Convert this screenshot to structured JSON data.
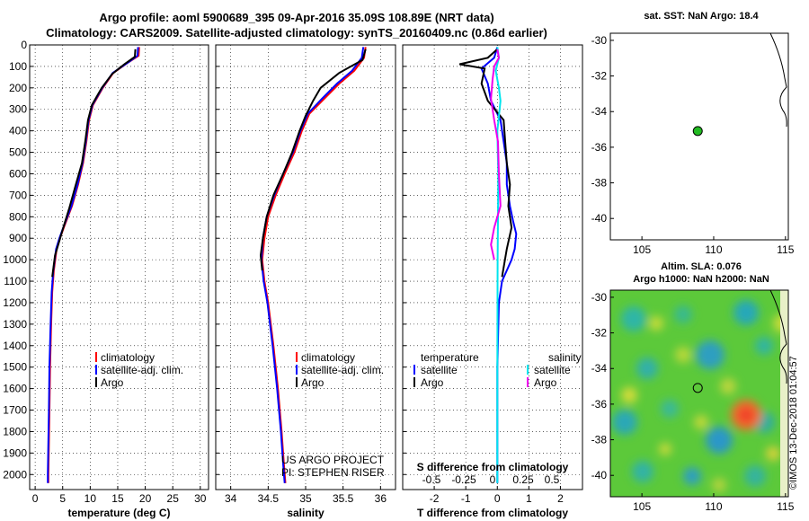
{
  "header": {
    "title_line1": "Argo profile: aoml 5900689_395 09-Apr-2016 35.09S 108.89E (NRT data)",
    "title_line2": "Climatology: CARS2009. Satellite-adjusted climatology: synTS_20160409.nc (0.86d earlier)"
  },
  "colors": {
    "climatology": "#ff0000",
    "satellite": "#0000ff",
    "argo": "#000000",
    "sal_satellite": "#00e5ee",
    "sal_argo": "#ee00ee"
  },
  "watermark": "©IMOS 13-Dec-2018 01:04:57",
  "project_credit": {
    "line1": "US ARGO PROJECT",
    "line2": "PI: STEPHEN RISER"
  },
  "chart_data": [
    {
      "type": "line",
      "id": "temperature",
      "xlabel": "temperature (deg C)",
      "ylabel": "",
      "xlim": [
        -1,
        31.5
      ],
      "ylim": [
        2070,
        0
      ],
      "xticks": [
        "0",
        "5",
        "10",
        "15",
        "20",
        "25",
        "30"
      ],
      "yticks": [
        "0",
        "100",
        "200",
        "300",
        "400",
        "500",
        "600",
        "700",
        "800",
        "900",
        "1000",
        "1100",
        "1200",
        "1300",
        "1400",
        "1500",
        "1600",
        "1700",
        "1800",
        "1900",
        "2000"
      ],
      "grid": true,
      "legend": [
        "climatology",
        "satellite-adj. clim.",
        "Argo"
      ],
      "series": [
        {
          "name": "climatology",
          "color": "climatology",
          "x": [
            18.9,
            18.8,
            17,
            14.2,
            12.3,
            10.5,
            9.8,
            9.3,
            8.7,
            7.8,
            6.7,
            5.2,
            4.5,
            3.9,
            3.4,
            3.1,
            2.9,
            2.7,
            2.6,
            2.5,
            2.4,
            2.4
          ],
          "y": [
            10,
            50,
            80,
            130,
            200,
            280,
            350,
            450,
            550,
            650,
            750,
            850,
            900,
            950,
            1050,
            1150,
            1300,
            1500,
            1700,
            1850,
            2000,
            2040
          ]
        },
        {
          "name": "satellite-adj. clim.",
          "color": "satellite",
          "x": [
            18.7,
            18.6,
            17,
            14.1,
            12.2,
            10.4,
            9.7,
            9.2,
            8.6,
            7.7,
            6.6,
            5.1,
            4.4,
            3.8,
            3.3,
            3.0,
            2.8,
            2.6,
            2.5,
            2.4,
            2.3,
            2.3
          ],
          "y": [
            10,
            50,
            80,
            130,
            200,
            280,
            350,
            450,
            550,
            650,
            750,
            850,
            900,
            950,
            1050,
            1150,
            1300,
            1500,
            1700,
            1850,
            2000,
            2040
          ]
        },
        {
          "name": "Argo",
          "color": "argo",
          "x": [
            18.2,
            18.1,
            16.2,
            14.0,
            12.1,
            10.3,
            9.6,
            9.1,
            8.5,
            7.4,
            6.2,
            5.0,
            4.3,
            3.6,
            3.1
          ],
          "y": [
            20,
            55,
            90,
            135,
            200,
            280,
            350,
            450,
            550,
            650,
            760,
            860,
            920,
            980,
            1080
          ]
        }
      ]
    },
    {
      "type": "line",
      "id": "salinity",
      "xlabel": "salinity",
      "ylabel": "",
      "xlim": [
        33.8,
        36.2
      ],
      "ylim": [
        2070,
        0
      ],
      "xticks": [
        "34",
        "34.5",
        "35",
        "35.5",
        "36"
      ],
      "grid": true,
      "legend": [
        "climatology",
        "satellite-adj. clim.",
        "Argo"
      ],
      "series": [
        {
          "name": "climatology",
          "color": "climatology",
          "x": [
            35.8,
            35.78,
            35.65,
            35.45,
            35.25,
            35.05,
            34.95,
            34.85,
            34.72,
            34.6,
            34.5,
            34.45,
            34.42,
            34.45,
            34.5,
            34.57,
            34.63,
            34.68,
            34.71,
            34.73
          ],
          "y": [
            10,
            60,
            120,
            180,
            250,
            320,
            400,
            500,
            600,
            700,
            800,
            900,
            1000,
            1100,
            1200,
            1400,
            1600,
            1800,
            1950,
            2040
          ]
        },
        {
          "name": "satellite-adj. clim.",
          "color": "satellite",
          "x": [
            35.77,
            35.75,
            35.62,
            35.42,
            35.22,
            35.03,
            34.93,
            34.83,
            34.7,
            34.58,
            34.48,
            34.43,
            34.41,
            34.44,
            34.49,
            34.56,
            34.62,
            34.67,
            34.7,
            34.72
          ],
          "y": [
            10,
            60,
            120,
            180,
            250,
            320,
            400,
            500,
            600,
            700,
            800,
            900,
            1000,
            1100,
            1200,
            1400,
            1600,
            1800,
            1950,
            2040
          ]
        },
        {
          "name": "Argo",
          "color": "argo",
          "x": [
            35.8,
            35.76,
            35.45,
            35.2,
            35.1,
            35.0,
            34.92,
            34.82,
            34.7,
            34.57,
            34.48,
            34.43,
            34.4,
            34.42
          ],
          "y": [
            20,
            70,
            130,
            200,
            260,
            330,
            400,
            500,
            600,
            700,
            800,
            900,
            980,
            1050
          ]
        }
      ]
    },
    {
      "type": "line",
      "id": "difference",
      "xlabel": "T difference from climatology",
      "top_xlabel": "S difference from climatology",
      "xlim": [
        -3,
        2.7
      ],
      "ylim": [
        2070,
        0
      ],
      "xticks": [
        "-2",
        "-1",
        "0",
        "1",
        "2"
      ],
      "top_xticks": [
        "-0.5",
        "-0.25",
        "0",
        "0.25",
        "0.5"
      ],
      "grid": true,
      "legend_left_title": "temperature",
      "legend_left": [
        "satellite",
        "Argo"
      ],
      "legend_right_title": "salinity",
      "legend_right": [
        "satellite",
        "Argo"
      ],
      "series": [
        {
          "name": "T satellite",
          "color": "satellite",
          "x": [
            0,
            -0.1,
            -0.5,
            -0.3,
            -0.2,
            0.1,
            0.2,
            0.3,
            0.3,
            0.4,
            0.5,
            0.6,
            0.55,
            0.45,
            0.3,
            0.15,
            0.05,
            0,
            0
          ],
          "y": [
            10,
            60,
            110,
            180,
            260,
            350,
            450,
            550,
            650,
            750,
            820,
            880,
            950,
            1000,
            1050,
            1100,
            1200,
            1500,
            2040
          ]
        },
        {
          "name": "T Argo",
          "color": "argo",
          "x": [
            0,
            -0.3,
            -1.2,
            -0.4,
            -0.5,
            -0.3,
            0.2,
            0.25,
            0.3,
            0.4,
            0.35,
            0.45,
            0.3,
            0.15
          ],
          "y": [
            20,
            60,
            90,
            110,
            180,
            260,
            350,
            450,
            550,
            650,
            750,
            850,
            950,
            1080
          ]
        },
        {
          "name": "S satellite",
          "color": "sal_satellite",
          "x": [
            0,
            0.05,
            -0.05,
            0.05,
            0.1,
            0.0,
            0.03,
            0.02,
            0.01,
            0,
            0
          ],
          "y": [
            10,
            60,
            120,
            200,
            260,
            400,
            600,
            800,
            1000,
            1500,
            2040
          ]
        },
        {
          "name": "S Argo",
          "color": "sal_argo",
          "x": [
            0,
            0.05,
            -0.1,
            -0.15,
            -0.2,
            -0.1,
            0.02,
            0.05,
            0.1,
            -0.1,
            -0.2,
            -0.1
          ],
          "y": [
            20,
            60,
            100,
            160,
            250,
            350,
            450,
            600,
            750,
            850,
            930,
            1000
          ]
        }
      ]
    }
  ],
  "maps": {
    "sst": {
      "title": "sat. SST: NaN Argo: 18.4",
      "xticks": [
        "105",
        "110",
        "115"
      ],
      "yticks": [
        "-30",
        "-32",
        "-34",
        "-36",
        "-38",
        "-40"
      ],
      "xlim": [
        102.8,
        115.2
      ],
      "ylim": [
        -41.2,
        -29.6
      ],
      "profile_lon": 108.89,
      "profile_lat": -35.09
    },
    "sla": {
      "title_line1": "Altim. SLA: 0.076",
      "title_line2": "Argo h1000: NaN h2000: NaN",
      "xticks": [
        "105",
        "110",
        "115"
      ],
      "yticks": [
        "-30",
        "-32",
        "-34",
        "-36",
        "-38",
        "-40"
      ],
      "xlim": [
        102.8,
        115.2
      ],
      "ylim": [
        -41.2,
        -29.6
      ],
      "profile_lon": 108.89,
      "profile_lat": -35.09
    }
  }
}
